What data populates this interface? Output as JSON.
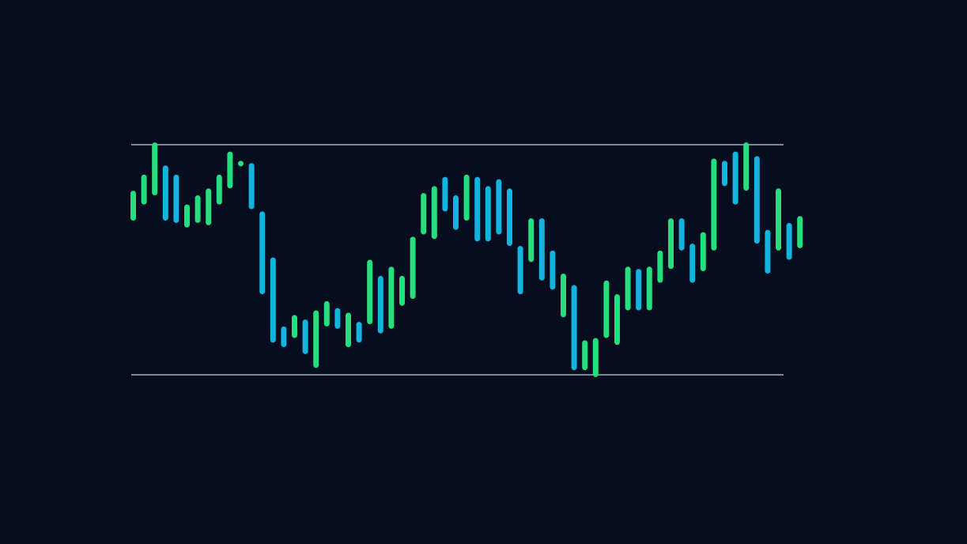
{
  "colors": {
    "background": "#060d1f",
    "up": "#22e07e",
    "down": "#12b4e0",
    "range_line": "#a9adb6"
  },
  "chart_data": {
    "type": "bar",
    "style": "range-bars",
    "grid": false,
    "legend": "none",
    "ylim": [
      0,
      100
    ],
    "range_lines": [
      100,
      0
    ],
    "bars": [
      {
        "low": 67,
        "high": 80,
        "dir": "up"
      },
      {
        "low": 74,
        "high": 87,
        "dir": "up"
      },
      {
        "low": 78,
        "high": 101,
        "dir": "up"
      },
      {
        "low": 67,
        "high": 91,
        "dir": "down"
      },
      {
        "low": 66,
        "high": 87,
        "dir": "down"
      },
      {
        "low": 64,
        "high": 74,
        "dir": "up"
      },
      {
        "low": 66,
        "high": 78,
        "dir": "up"
      },
      {
        "low": 65,
        "high": 81,
        "dir": "up"
      },
      {
        "low": 74,
        "high": 87,
        "dir": "up"
      },
      {
        "low": 81,
        "high": 97,
        "dir": "up"
      },
      {
        "low": 91,
        "high": 93,
        "dir": "up"
      },
      {
        "low": 72,
        "high": 92,
        "dir": "down"
      },
      {
        "low": 35,
        "high": 71,
        "dir": "down"
      },
      {
        "low": 14,
        "high": 51,
        "dir": "down"
      },
      {
        "low": 12,
        "high": 21,
        "dir": "down"
      },
      {
        "low": 16,
        "high": 26,
        "dir": "up"
      },
      {
        "low": 9,
        "high": 24,
        "dir": "down"
      },
      {
        "low": 3,
        "high": 28,
        "dir": "up"
      },
      {
        "low": 21,
        "high": 32,
        "dir": "up"
      },
      {
        "low": 20,
        "high": 29,
        "dir": "down"
      },
      {
        "low": 12,
        "high": 27,
        "dir": "up"
      },
      {
        "low": 14,
        "high": 23,
        "dir": "down"
      },
      {
        "low": 22,
        "high": 50,
        "dir": "up"
      },
      {
        "low": 18,
        "high": 43,
        "dir": "down"
      },
      {
        "low": 20,
        "high": 47,
        "dir": "up"
      },
      {
        "low": 30,
        "high": 43,
        "dir": "up"
      },
      {
        "low": 33,
        "high": 60,
        "dir": "up"
      },
      {
        "low": 61,
        "high": 79,
        "dir": "up"
      },
      {
        "low": 59,
        "high": 82,
        "dir": "up"
      },
      {
        "low": 71,
        "high": 86,
        "dir": "down"
      },
      {
        "low": 63,
        "high": 78,
        "dir": "down"
      },
      {
        "low": 67,
        "high": 87,
        "dir": "up"
      },
      {
        "low": 58,
        "high": 86,
        "dir": "down"
      },
      {
        "low": 58,
        "high": 82,
        "dir": "down"
      },
      {
        "low": 61,
        "high": 85,
        "dir": "down"
      },
      {
        "low": 56,
        "high": 81,
        "dir": "down"
      },
      {
        "low": 35,
        "high": 56,
        "dir": "down"
      },
      {
        "low": 49,
        "high": 68,
        "dir": "up"
      },
      {
        "low": 41,
        "high": 68,
        "dir": "down"
      },
      {
        "low": 37,
        "high": 54,
        "dir": "down"
      },
      {
        "low": 25,
        "high": 44,
        "dir": "up"
      },
      {
        "low": 2,
        "high": 39,
        "dir": "down"
      },
      {
        "low": 2,
        "high": 15,
        "dir": "up"
      },
      {
        "low": -1,
        "high": 16,
        "dir": "up"
      },
      {
        "low": 16,
        "high": 41,
        "dir": "up"
      },
      {
        "low": 13,
        "high": 35,
        "dir": "up"
      },
      {
        "low": 28,
        "high": 47,
        "dir": "up"
      },
      {
        "low": 28,
        "high": 46,
        "dir": "down"
      },
      {
        "low": 28,
        "high": 47,
        "dir": "up"
      },
      {
        "low": 40,
        "high": 54,
        "dir": "up"
      },
      {
        "low": 46,
        "high": 68,
        "dir": "up"
      },
      {
        "low": 54,
        "high": 68,
        "dir": "down"
      },
      {
        "low": 40,
        "high": 57,
        "dir": "down"
      },
      {
        "low": 45,
        "high": 62,
        "dir": "up"
      },
      {
        "low": 54,
        "high": 94,
        "dir": "up"
      },
      {
        "low": 82,
        "high": 93,
        "dir": "down"
      },
      {
        "low": 74,
        "high": 97,
        "dir": "down"
      },
      {
        "low": 80,
        "high": 101,
        "dir": "up"
      },
      {
        "low": 57,
        "high": 95,
        "dir": "down"
      },
      {
        "low": 44,
        "high": 63,
        "dir": "down"
      },
      {
        "low": 54,
        "high": 81,
        "dir": "up"
      },
      {
        "low": 50,
        "high": 66,
        "dir": "down"
      },
      {
        "low": 55,
        "high": 69,
        "dir": "up"
      }
    ]
  }
}
